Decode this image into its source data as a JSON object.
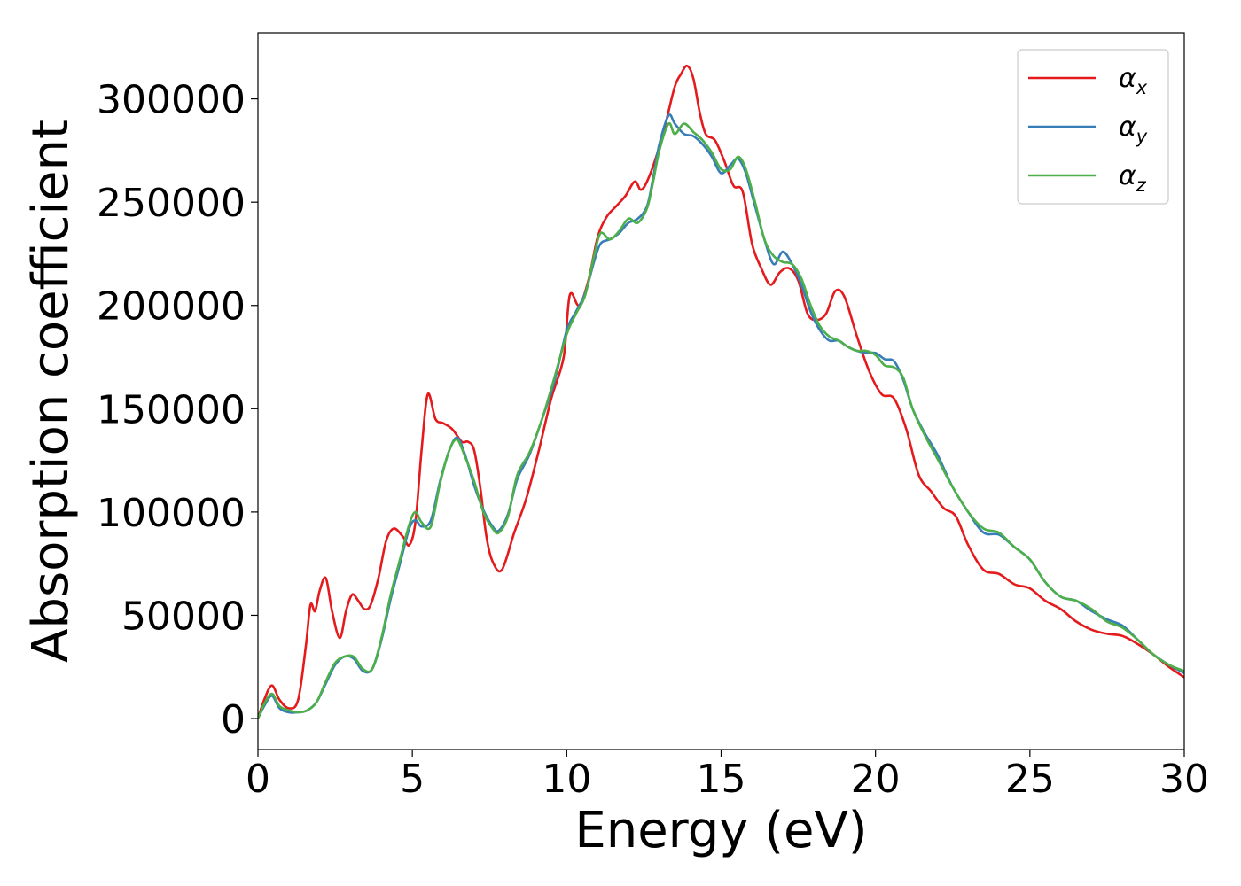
{
  "chart_data": {
    "type": "line",
    "xlabel": "Energy (eV)",
    "ylabel": "Absorption coefficient",
    "xlim": [
      0,
      30
    ],
    "ylim": [
      -15000,
      332000
    ],
    "xticks": [
      0,
      5,
      10,
      15,
      20,
      25,
      30
    ],
    "yticks": [
      0,
      50000,
      100000,
      150000,
      200000,
      250000,
      300000
    ],
    "grid": false,
    "legend_position": "top-right",
    "series": [
      {
        "name": "α",
        "subscript": "x",
        "color": "#e41a1c",
        "x": [
          0,
          0.2,
          0.45,
          0.7,
          1.0,
          1.3,
          1.55,
          1.7,
          1.85,
          2.0,
          2.2,
          2.4,
          2.65,
          2.85,
          3.05,
          3.25,
          3.45,
          3.65,
          3.9,
          4.15,
          4.4,
          4.7,
          4.9,
          5.1,
          5.3,
          5.5,
          5.75,
          6.0,
          6.3,
          6.6,
          6.8,
          7.0,
          7.2,
          7.4,
          7.6,
          7.9,
          8.3,
          8.7,
          9.1,
          9.5,
          9.9,
          10.1,
          10.4,
          10.7,
          11.0,
          11.3,
          11.6,
          11.9,
          12.2,
          12.4,
          12.6,
          12.9,
          13.2,
          13.5,
          13.7,
          13.9,
          14.1,
          14.3,
          14.5,
          14.8,
          15.1,
          15.4,
          15.7,
          16.0,
          16.3,
          16.6,
          16.9,
          17.2,
          17.5,
          17.8,
          18.1,
          18.4,
          18.7,
          19.0,
          19.4,
          19.8,
          20.2,
          20.6,
          21.0,
          21.4,
          21.8,
          22.2,
          22.6,
          23.0,
          23.5,
          24.0,
          24.5,
          25.0,
          25.5,
          26.0,
          26.5,
          27.0,
          27.5,
          28.0,
          28.5,
          29.0,
          29.5,
          30.0
        ],
        "y": [
          0,
          9000,
          16000,
          9000,
          5000,
          9000,
          35000,
          55000,
          52000,
          62000,
          68000,
          52000,
          39000,
          52000,
          60000,
          57000,
          53000,
          55000,
          68000,
          86000,
          92000,
          88000,
          84000,
          95000,
          130000,
          157000,
          145000,
          143000,
          140000,
          134000,
          134000,
          130000,
          112000,
          88000,
          76000,
          72000,
          90000,
          107000,
          130000,
          155000,
          175000,
          205000,
          200000,
          212000,
          233000,
          243000,
          248000,
          253000,
          260000,
          256000,
          260000,
          272000,
          288000,
          306000,
          312000,
          316000,
          310000,
          294000,
          283000,
          280000,
          270000,
          258000,
          255000,
          230000,
          218000,
          210000,
          216000,
          218000,
          212000,
          196000,
          193000,
          196000,
          207000,
          204000,
          185000,
          168000,
          157000,
          155000,
          140000,
          118000,
          110000,
          102000,
          98000,
          84000,
          72000,
          70000,
          65000,
          63000,
          57000,
          53000,
          47000,
          43000,
          41000,
          40000,
          36000,
          31000,
          25000,
          20000
        ]
      },
      {
        "name": "α",
        "subscript": "y",
        "color": "#377eb8",
        "x": [
          0,
          0.2,
          0.45,
          0.7,
          1.0,
          1.3,
          1.6,
          1.9,
          2.2,
          2.5,
          2.8,
          3.1,
          3.4,
          3.7,
          4.0,
          4.3,
          4.6,
          4.9,
          5.1,
          5.3,
          5.6,
          5.9,
          6.2,
          6.45,
          6.7,
          7.0,
          7.3,
          7.6,
          7.8,
          8.1,
          8.4,
          8.8,
          9.2,
          9.6,
          10.0,
          10.3,
          10.6,
          10.9,
          11.1,
          11.4,
          11.7,
          12.0,
          12.3,
          12.6,
          12.8,
          13.0,
          13.3,
          13.5,
          13.8,
          14.1,
          14.4,
          14.7,
          15.0,
          15.3,
          15.55,
          15.8,
          16.1,
          16.4,
          16.7,
          17.0,
          17.3,
          17.6,
          17.9,
          18.2,
          18.5,
          18.8,
          19.1,
          19.4,
          19.7,
          20.0,
          20.3,
          20.6,
          20.9,
          21.2,
          21.6,
          22.0,
          22.5,
          23.0,
          23.5,
          24.0,
          24.5,
          25.0,
          25.5,
          26.0,
          26.5,
          27.0,
          27.5,
          28.0,
          28.5,
          29.0,
          29.5,
          30.0
        ],
        "y": [
          0,
          6000,
          11000,
          5000,
          3000,
          3000,
          4000,
          8000,
          17000,
          26000,
          30000,
          29000,
          23000,
          24000,
          38000,
          58000,
          75000,
          92000,
          96000,
          93000,
          96000,
          115000,
          130000,
          136000,
          128000,
          113000,
          101000,
          93000,
          91000,
          99000,
          116000,
          128000,
          145000,
          163000,
          188000,
          197000,
          206000,
          222000,
          230000,
          232000,
          235000,
          240000,
          242000,
          248000,
          262000,
          278000,
          292000,
          288000,
          283000,
          282000,
          278000,
          272000,
          264000,
          268000,
          271000,
          264000,
          248000,
          232000,
          220000,
          226000,
          220000,
          210000,
          197000,
          188000,
          183000,
          183000,
          180000,
          178000,
          177000,
          177000,
          174000,
          173000,
          164000,
          150000,
          138000,
          128000,
          112000,
          100000,
          90000,
          89000,
          83000,
          77000,
          66000,
          59000,
          57000,
          52000,
          48000,
          45000,
          38000,
          31000,
          26000,
          22000
        ]
      },
      {
        "name": "α",
        "subscript": "z",
        "color": "#4daf4a",
        "x": [
          0,
          0.2,
          0.45,
          0.7,
          1.0,
          1.3,
          1.6,
          1.9,
          2.2,
          2.5,
          2.8,
          3.1,
          3.4,
          3.7,
          4.0,
          4.3,
          4.6,
          4.9,
          5.1,
          5.3,
          5.6,
          5.9,
          6.2,
          6.45,
          6.7,
          7.0,
          7.3,
          7.6,
          7.8,
          8.1,
          8.4,
          8.8,
          9.2,
          9.6,
          10.0,
          10.3,
          10.6,
          10.9,
          11.1,
          11.4,
          11.7,
          12.0,
          12.3,
          12.6,
          12.8,
          13.0,
          13.3,
          13.5,
          13.8,
          14.1,
          14.4,
          14.7,
          15.0,
          15.3,
          15.55,
          15.8,
          16.1,
          16.4,
          16.7,
          17.0,
          17.3,
          17.6,
          17.9,
          18.2,
          18.5,
          18.8,
          19.1,
          19.4,
          19.7,
          20.0,
          20.3,
          20.6,
          20.9,
          21.2,
          21.6,
          22.0,
          22.5,
          23.0,
          23.5,
          24.0,
          24.5,
          25.0,
          25.5,
          26.0,
          26.5,
          27.0,
          27.5,
          28.0,
          28.5,
          29.0,
          29.5,
          30.0
        ],
        "y": [
          0,
          7000,
          12000,
          6000,
          4000,
          3000,
          4000,
          8000,
          18000,
          27000,
          30000,
          30000,
          24000,
          24000,
          39000,
          60000,
          77000,
          94000,
          100000,
          95000,
          93000,
          114000,
          130000,
          135000,
          127000,
          115000,
          100000,
          92000,
          90000,
          98000,
          118000,
          129000,
          145000,
          165000,
          186000,
          196000,
          205000,
          225000,
          235000,
          232000,
          236000,
          242000,
          240000,
          247000,
          260000,
          275000,
          288000,
          283000,
          288000,
          284000,
          280000,
          274000,
          266000,
          266000,
          272000,
          266000,
          250000,
          232000,
          224000,
          221000,
          220000,
          213000,
          200000,
          190000,
          185000,
          183000,
          180000,
          178000,
          178000,
          176000,
          171000,
          170000,
          165000,
          150000,
          137000,
          126000,
          112000,
          100000,
          92000,
          90000,
          83000,
          77000,
          66000,
          59000,
          57000,
          53000,
          47000,
          44000,
          38000,
          31000,
          26000,
          23000
        ]
      }
    ]
  }
}
